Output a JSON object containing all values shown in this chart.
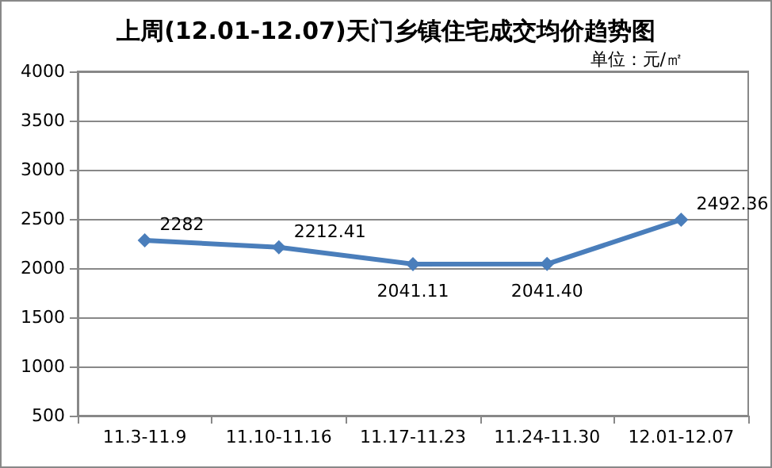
{
  "chart_data": {
    "type": "line",
    "title": "上周(12.01-12.07)天门乡镇住宅成交均价趋势图",
    "subtitle": "单位：元/㎡",
    "categories": [
      "11.3-11.9",
      "11.10-11.16",
      "11.17-11.23",
      "11.24-11.30",
      "12.01-12.07"
    ],
    "series": [
      {
        "color": "#4a7ebb",
        "values": [
          2282,
          2212.41,
          2041.11,
          2041.4,
          2492.36
        ],
        "value_labels": [
          "2282",
          "2212.41",
          "2041.11",
          "2041.40",
          "2492.36"
        ]
      }
    ],
    "ylim": [
      500,
      4000
    ],
    "yticks": [
      500,
      1000,
      1500,
      2000,
      2500,
      3000,
      3500,
      4000
    ],
    "grid": "y",
    "marker": "diamond",
    "line_style": "solid"
  }
}
